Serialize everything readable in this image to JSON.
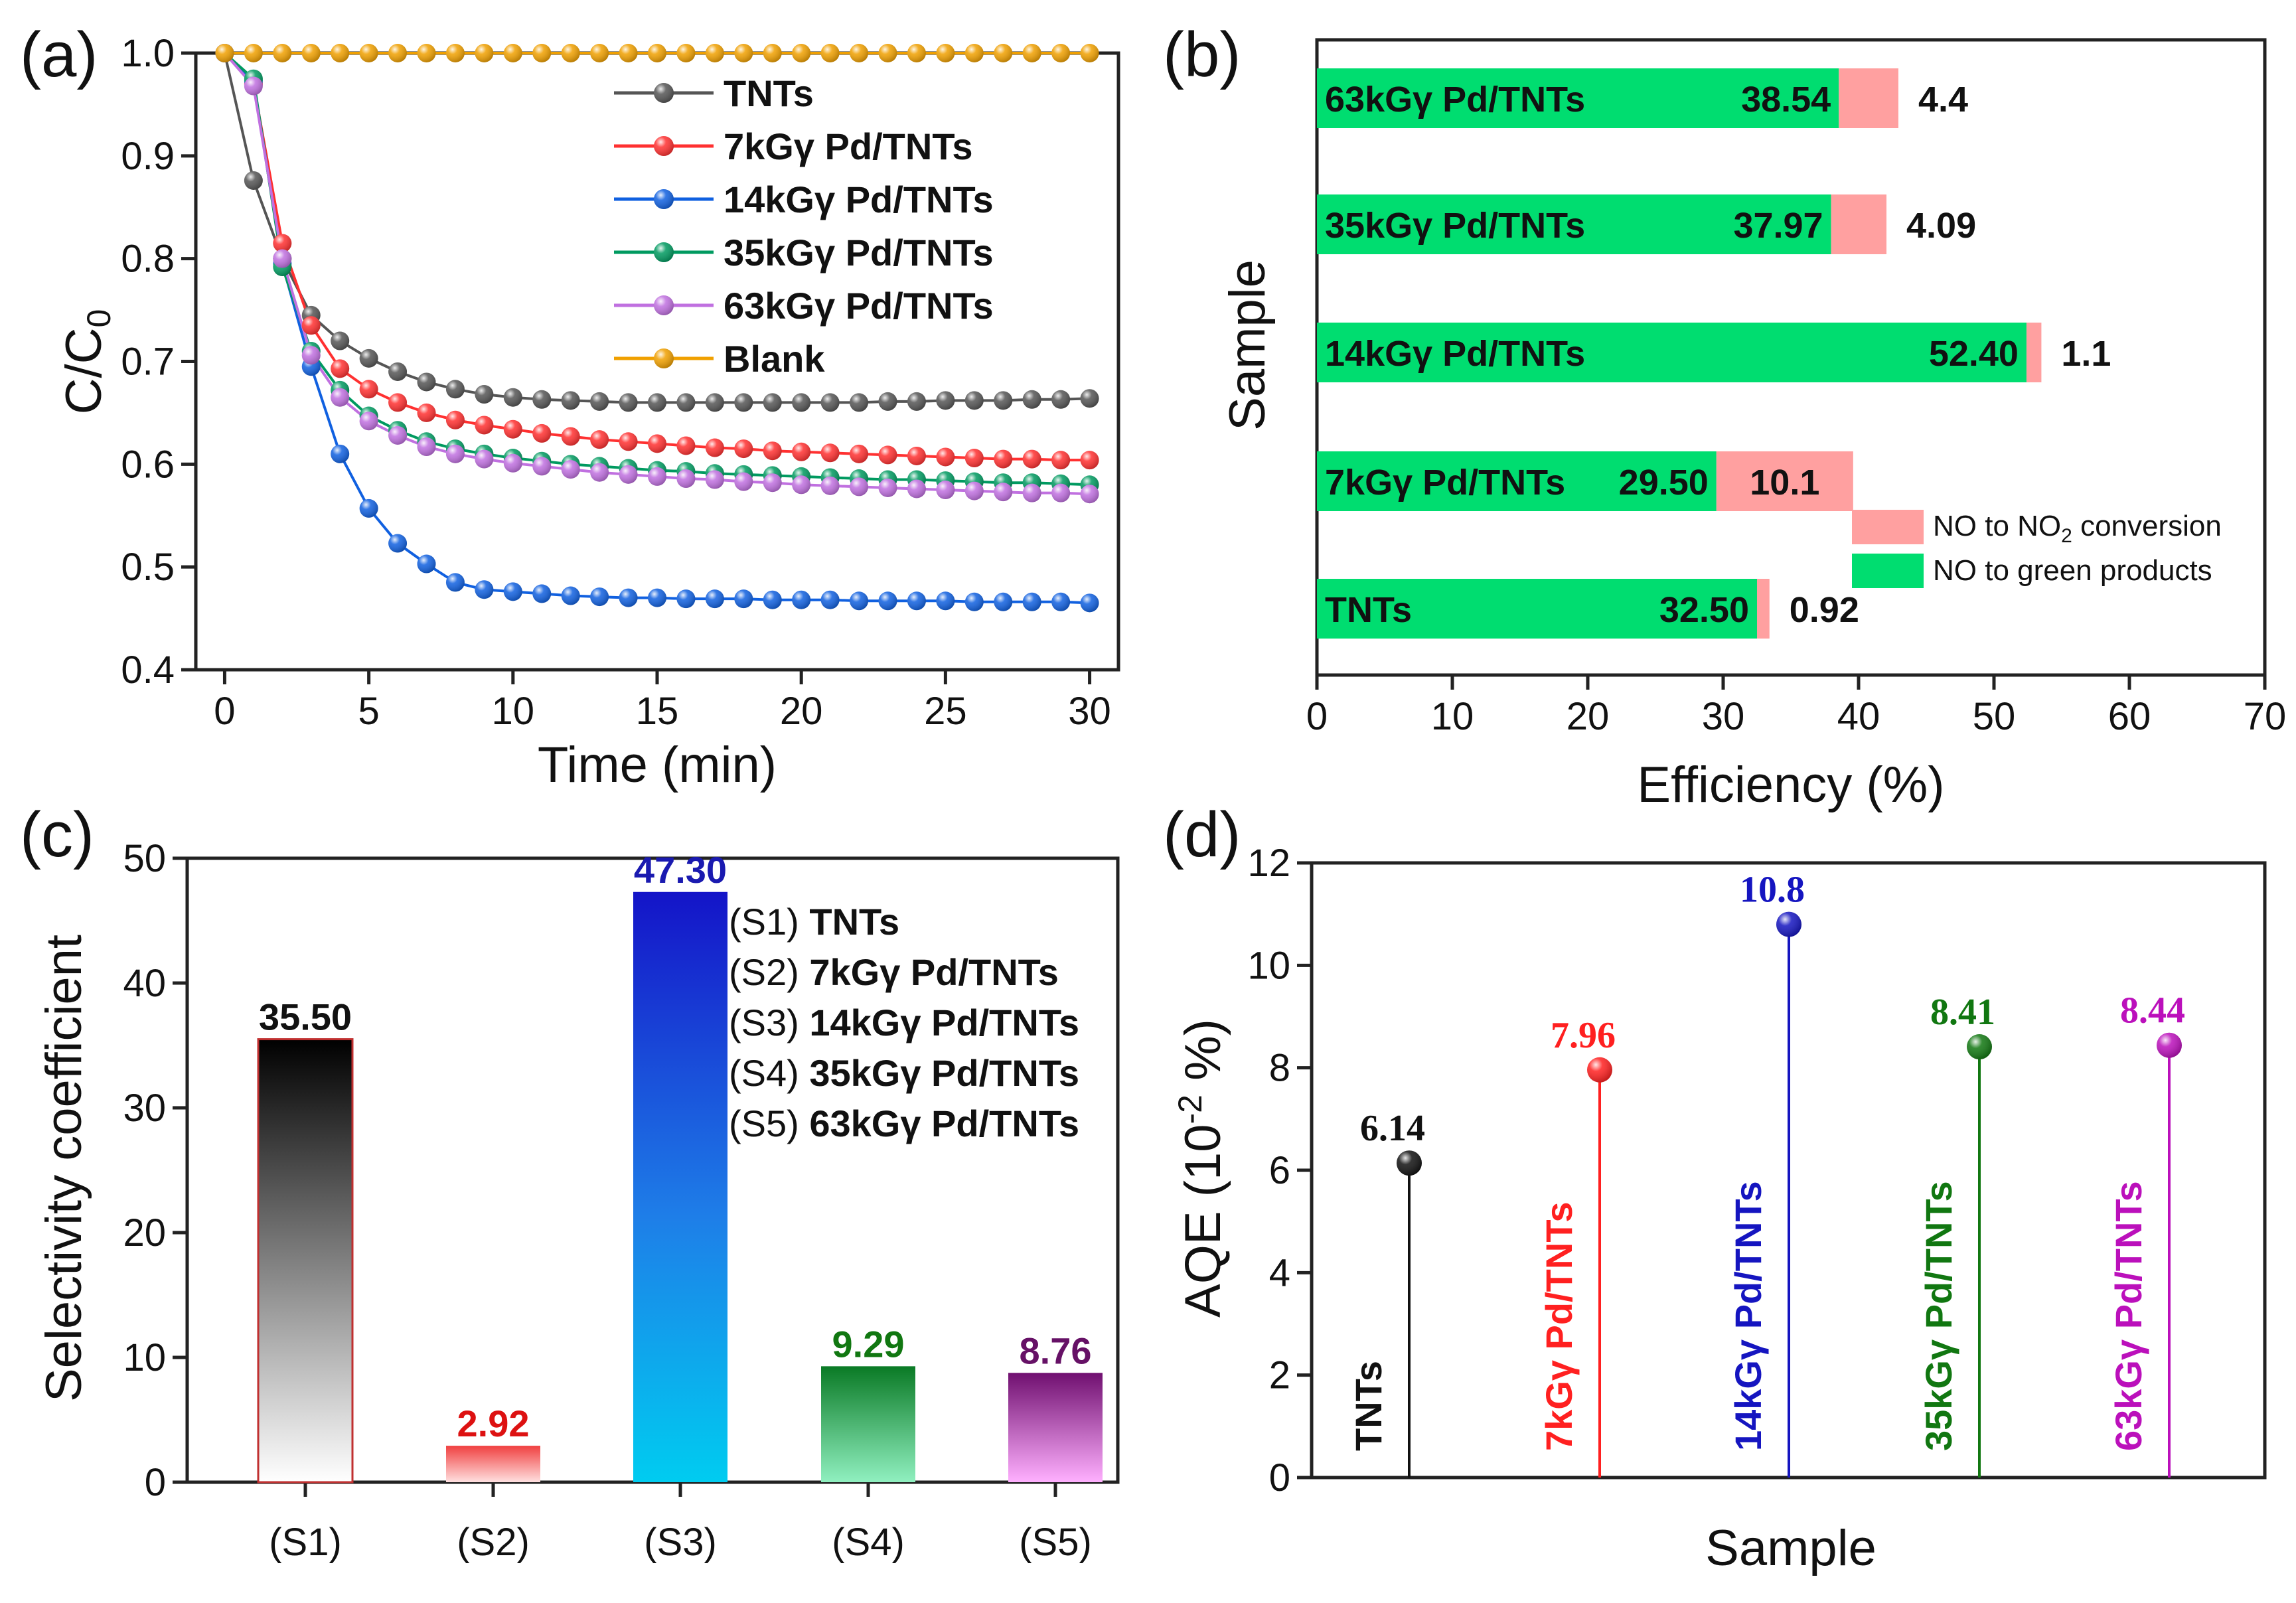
{
  "chart_data": [
    {
      "panel": "(a)",
      "type": "line",
      "xlabel": "Time (min)",
      "ylabel_main": "C/C",
      "ylabel_sub": "0",
      "xlim": [
        -1,
        31
      ],
      "ylim": [
        0.4,
        1.0
      ],
      "x_ticks": [
        0,
        5,
        10,
        15,
        20,
        25,
        30
      ],
      "y_ticks": [
        "0.4",
        "0.5",
        "0.6",
        "0.7",
        "0.8",
        "0.9",
        "1.0"
      ],
      "x": [
        0,
        1,
        2,
        3,
        4,
        5,
        6,
        7,
        8,
        9,
        10,
        11,
        12,
        13,
        14,
        15,
        16,
        17,
        18,
        19,
        20,
        21,
        22,
        23,
        24,
        25,
        26,
        27,
        28,
        29,
        30
      ],
      "series": [
        {
          "name": "TNTs",
          "color": "#555555",
          "values": [
            1.0,
            0.876,
            0.8,
            0.745,
            0.72,
            0.703,
            0.69,
            0.68,
            0.673,
            0.668,
            0.665,
            0.663,
            0.662,
            0.661,
            0.66,
            0.66,
            0.66,
            0.66,
            0.66,
            0.66,
            0.66,
            0.66,
            0.66,
            0.661,
            0.661,
            0.662,
            0.662,
            0.662,
            0.663,
            0.663,
            0.664
          ]
        },
        {
          "name": "7kGγ Pd/TNTs",
          "color": "#ff3030",
          "values": [
            1.0,
            0.97,
            0.815,
            0.735,
            0.693,
            0.673,
            0.66,
            0.65,
            0.643,
            0.638,
            0.634,
            0.63,
            0.627,
            0.624,
            0.622,
            0.62,
            0.618,
            0.616,
            0.615,
            0.613,
            0.612,
            0.611,
            0.61,
            0.609,
            0.608,
            0.607,
            0.606,
            0.605,
            0.605,
            0.604,
            0.604
          ]
        },
        {
          "name": "14kGγ Pd/TNTs",
          "color": "#1060e0",
          "values": [
            1.0,
            0.973,
            0.795,
            0.695,
            0.61,
            0.557,
            0.523,
            0.503,
            0.485,
            0.478,
            0.476,
            0.474,
            0.472,
            0.471,
            0.47,
            0.47,
            0.469,
            0.469,
            0.469,
            0.468,
            0.468,
            0.468,
            0.467,
            0.467,
            0.467,
            0.467,
            0.466,
            0.466,
            0.466,
            0.466,
            0.465
          ]
        },
        {
          "name": "35kGγ Pd/TNTs",
          "color": "#009a60",
          "values": [
            1.0,
            0.975,
            0.792,
            0.71,
            0.672,
            0.647,
            0.633,
            0.622,
            0.615,
            0.61,
            0.606,
            0.603,
            0.6,
            0.598,
            0.596,
            0.594,
            0.593,
            0.591,
            0.59,
            0.589,
            0.588,
            0.587,
            0.586,
            0.585,
            0.585,
            0.584,
            0.583,
            0.582,
            0.582,
            0.581,
            0.58
          ]
        },
        {
          "name": "63kGγ Pd/TNTs",
          "color": "#c070e0",
          "values": [
            1.0,
            0.968,
            0.8,
            0.706,
            0.665,
            0.642,
            0.628,
            0.617,
            0.61,
            0.605,
            0.601,
            0.598,
            0.595,
            0.592,
            0.59,
            0.588,
            0.586,
            0.585,
            0.583,
            0.582,
            0.58,
            0.579,
            0.578,
            0.577,
            0.576,
            0.575,
            0.574,
            0.573,
            0.572,
            0.572,
            0.571
          ]
        },
        {
          "name": "Blank",
          "color": "#f0a000",
          "values": [
            1.0,
            1.0,
            1.0,
            1.0,
            1.0,
            1.0,
            1.0,
            1.0,
            1.0,
            1.0,
            1.0,
            1.0,
            1.0,
            1.0,
            1.0,
            1.0,
            1.0,
            1.0,
            1.0,
            1.0,
            1.0,
            1.0,
            1.0,
            1.0,
            1.0,
            1.0,
            1.0,
            1.0,
            1.0,
            1.0,
            1.0
          ]
        }
      ]
    },
    {
      "panel": "(b)",
      "type": "bar",
      "orientation": "horizontal-stacked",
      "xlabel": "Efficiency (%)",
      "ylabel": "Sample",
      "xlim": [
        0,
        70
      ],
      "x_ticks": [
        0,
        10,
        20,
        30,
        40,
        50,
        60,
        70
      ],
      "categories": [
        "TNTs",
        "7kGγ Pd/TNTs",
        "14kGγ Pd/TNTs",
        "35kGγ Pd/TNTs",
        "63kGγ Pd/TNTs"
      ],
      "series": [
        {
          "name": "NO to green products",
          "color": "#00dd70",
          "values": [
            32.5,
            29.5,
            52.4,
            37.97,
            38.54
          ],
          "labels": [
            "32.50",
            "29.50",
            "52.40",
            "37.97",
            "38.54"
          ]
        },
        {
          "name": "NO to NO₂ conversion",
          "color": "#ffa0a0",
          "values": [
            0.92,
            10.1,
            1.1,
            4.09,
            4.4
          ],
          "labels": [
            "0.92",
            "10.1",
            "1.1",
            "4.09",
            "4.4"
          ]
        }
      ],
      "legend": [
        "NO to NO",
        "2",
        " conversion",
        "NO to green products"
      ]
    },
    {
      "panel": "(c)",
      "type": "bar",
      "ylabel": "Selectivity coefficient",
      "ylim": [
        0,
        50
      ],
      "y_ticks": [
        0,
        10,
        20,
        30,
        40,
        50
      ],
      "categories": [
        "(S1)",
        "(S2)",
        "(S3)",
        "(S4)",
        "(S5)"
      ],
      "values": [
        35.5,
        2.92,
        47.3,
        9.29,
        8.76
      ],
      "value_labels": [
        "35.50",
        "2.92",
        "47.30",
        "9.29",
        "8.76"
      ],
      "label_colors": [
        "#111111",
        "#dd1111",
        "#1a1ab0",
        "#117711",
        "#661166"
      ],
      "legend": [
        {
          "code": "(S1)",
          "name": "TNTs"
        },
        {
          "code": "(S2)",
          "name": "7kGγ Pd/TNTs"
        },
        {
          "code": "(S3)",
          "name": "14kGγ Pd/TNTs"
        },
        {
          "code": "(S4)",
          "name": "35kGγ Pd/TNTs"
        },
        {
          "code": "(S5)",
          "name": "63kGγ Pd/TNTs"
        }
      ]
    },
    {
      "panel": "(d)",
      "type": "scatter",
      "style": "stem",
      "xlabel": "Sample",
      "ylabel_main": "AQE (10",
      "ylabel_sup": "-2",
      "ylabel_end": " %)",
      "ylim": [
        0,
        12
      ],
      "y_ticks": [
        0,
        2,
        4,
        6,
        8,
        10,
        12
      ],
      "categories": [
        "TNTs",
        "7kGγ Pd/TNTs",
        "14kGγ Pd/TNTs",
        "35kGγ Pd/TNTs",
        "63kGγ Pd/TNTs"
      ],
      "values": [
        6.14,
        7.96,
        10.8,
        8.41,
        8.44
      ],
      "value_labels": [
        "6.14",
        "7.96",
        "10.8",
        "8.41",
        "8.44"
      ],
      "colors": [
        "#111111",
        "#ff2020",
        "#1515c0",
        "#117711",
        "#bb10bb"
      ]
    }
  ]
}
